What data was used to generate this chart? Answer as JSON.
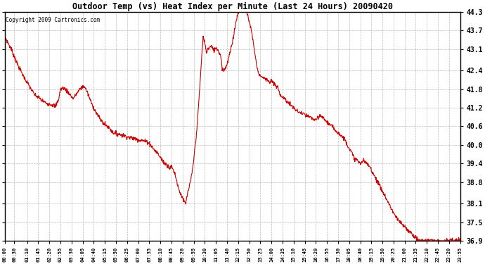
{
  "title": "Outdoor Temp (vs) Heat Index per Minute (Last 24 Hours) 20090420",
  "copyright": "Copyright 2009 Cartronics.com",
  "line_color": "#cc0000",
  "background_color": "#ffffff",
  "grid_color": "#aaaaaa",
  "ylim": [
    36.9,
    44.3
  ],
  "yticks": [
    36.9,
    37.5,
    38.1,
    38.8,
    39.4,
    40.0,
    40.6,
    41.2,
    41.8,
    42.4,
    43.1,
    43.7,
    44.3
  ],
  "x_labels": [
    "00:00",
    "00:30",
    "01:10",
    "01:45",
    "02:20",
    "02:55",
    "03:30",
    "04:05",
    "04:40",
    "05:15",
    "05:50",
    "06:25",
    "07:00",
    "07:35",
    "08:10",
    "08:45",
    "09:20",
    "09:55",
    "10:30",
    "11:05",
    "11:40",
    "12:15",
    "12:50",
    "13:25",
    "14:00",
    "14:35",
    "15:10",
    "15:45",
    "16:20",
    "16:55",
    "17:30",
    "18:05",
    "18:40",
    "19:15",
    "19:50",
    "20:25",
    "21:00",
    "21:35",
    "22:10",
    "22:45",
    "23:20",
    "23:55"
  ],
  "waypoints": [
    [
      0,
      43.5
    ],
    [
      20,
      43.1
    ],
    [
      40,
      42.6
    ],
    [
      60,
      42.2
    ],
    [
      80,
      41.85
    ],
    [
      95,
      41.6
    ],
    [
      105,
      41.55
    ],
    [
      115,
      41.45
    ],
    [
      130,
      41.35
    ],
    [
      150,
      41.3
    ],
    [
      160,
      41.25
    ],
    [
      170,
      41.5
    ],
    [
      175,
      41.8
    ],
    [
      185,
      41.85
    ],
    [
      200,
      41.7
    ],
    [
      215,
      41.5
    ],
    [
      240,
      41.85
    ],
    [
      250,
      41.9
    ],
    [
      260,
      41.7
    ],
    [
      275,
      41.3
    ],
    [
      290,
      41.0
    ],
    [
      310,
      40.7
    ],
    [
      330,
      40.55
    ],
    [
      340,
      40.4
    ],
    [
      360,
      40.35
    ],
    [
      375,
      40.3
    ],
    [
      390,
      40.25
    ],
    [
      410,
      40.2
    ],
    [
      430,
      40.15
    ],
    [
      450,
      40.1
    ],
    [
      460,
      40.0
    ],
    [
      470,
      39.85
    ],
    [
      480,
      39.75
    ],
    [
      490,
      39.6
    ],
    [
      500,
      39.45
    ],
    [
      510,
      39.35
    ],
    [
      515,
      39.3
    ],
    [
      520,
      39.25
    ],
    [
      525,
      39.3
    ],
    [
      530,
      39.2
    ],
    [
      535,
      39.1
    ],
    [
      540,
      38.9
    ],
    [
      545,
      38.7
    ],
    [
      550,
      38.5
    ],
    [
      555,
      38.4
    ],
    [
      560,
      38.3
    ],
    [
      565,
      38.15
    ],
    [
      570,
      38.1
    ],
    [
      575,
      38.4
    ],
    [
      580,
      38.6
    ],
    [
      585,
      38.8
    ],
    [
      590,
      39.1
    ],
    [
      595,
      39.5
    ],
    [
      600,
      40.0
    ],
    [
      605,
      40.5
    ],
    [
      610,
      41.2
    ],
    [
      615,
      42.0
    ],
    [
      620,
      42.8
    ],
    [
      625,
      43.5
    ],
    [
      630,
      43.3
    ],
    [
      635,
      43.0
    ],
    [
      640,
      43.1
    ],
    [
      645,
      43.15
    ],
    [
      650,
      43.2
    ],
    [
      655,
      43.1
    ],
    [
      660,
      43.05
    ],
    [
      665,
      43.15
    ],
    [
      670,
      43.1
    ],
    [
      675,
      43.0
    ],
    [
      680,
      42.9
    ],
    [
      685,
      42.5
    ],
    [
      690,
      42.4
    ],
    [
      695,
      42.5
    ],
    [
      700,
      42.6
    ],
    [
      705,
      42.8
    ],
    [
      710,
      43.0
    ],
    [
      715,
      43.2
    ],
    [
      720,
      43.5
    ],
    [
      725,
      43.8
    ],
    [
      730,
      44.1
    ],
    [
      735,
      44.25
    ],
    [
      740,
      44.35
    ],
    [
      745,
      44.4
    ],
    [
      750,
      44.45
    ],
    [
      755,
      44.4
    ],
    [
      760,
      44.35
    ],
    [
      765,
      44.2
    ],
    [
      770,
      44.0
    ],
    [
      775,
      43.8
    ],
    [
      780,
      43.5
    ],
    [
      785,
      43.2
    ],
    [
      790,
      42.8
    ],
    [
      795,
      42.5
    ],
    [
      800,
      42.3
    ],
    [
      810,
      42.2
    ],
    [
      820,
      42.15
    ],
    [
      830,
      42.1
    ],
    [
      835,
      42.0
    ],
    [
      840,
      42.1
    ],
    [
      845,
      42.0
    ],
    [
      850,
      41.95
    ],
    [
      855,
      41.9
    ],
    [
      860,
      41.85
    ],
    [
      865,
      41.7
    ],
    [
      870,
      41.6
    ],
    [
      875,
      41.55
    ],
    [
      880,
      41.5
    ],
    [
      885,
      41.45
    ],
    [
      890,
      41.4
    ],
    [
      895,
      41.35
    ],
    [
      900,
      41.3
    ],
    [
      910,
      41.2
    ],
    [
      920,
      41.1
    ],
    [
      930,
      41.05
    ],
    [
      940,
      41.0
    ],
    [
      950,
      40.95
    ],
    [
      960,
      40.9
    ],
    [
      970,
      40.85
    ],
    [
      980,
      40.8
    ],
    [
      990,
      40.9
    ],
    [
      995,
      40.95
    ],
    [
      1000,
      40.9
    ],
    [
      1005,
      40.85
    ],
    [
      1010,
      40.8
    ],
    [
      1020,
      40.7
    ],
    [
      1030,
      40.6
    ],
    [
      1040,
      40.5
    ],
    [
      1050,
      40.4
    ],
    [
      1060,
      40.3
    ],
    [
      1070,
      40.2
    ],
    [
      1075,
      40.1
    ],
    [
      1080,
      40.0
    ],
    [
      1085,
      39.9
    ],
    [
      1090,
      39.8
    ],
    [
      1095,
      39.7
    ],
    [
      1100,
      39.6
    ],
    [
      1105,
      39.55
    ],
    [
      1110,
      39.5
    ],
    [
      1115,
      39.45
    ],
    [
      1120,
      39.4
    ],
    [
      1125,
      39.45
    ],
    [
      1130,
      39.5
    ],
    [
      1135,
      39.45
    ],
    [
      1140,
      39.4
    ],
    [
      1145,
      39.35
    ],
    [
      1150,
      39.3
    ],
    [
      1155,
      39.2
    ],
    [
      1160,
      39.1
    ],
    [
      1165,
      39.0
    ],
    [
      1170,
      38.9
    ],
    [
      1175,
      38.8
    ],
    [
      1180,
      38.7
    ],
    [
      1190,
      38.5
    ],
    [
      1200,
      38.3
    ],
    [
      1210,
      38.1
    ],
    [
      1220,
      37.9
    ],
    [
      1230,
      37.7
    ],
    [
      1240,
      37.55
    ],
    [
      1250,
      37.45
    ],
    [
      1260,
      37.35
    ],
    [
      1270,
      37.25
    ],
    [
      1280,
      37.15
    ],
    [
      1290,
      37.05
    ],
    [
      1300,
      36.95
    ],
    [
      1310,
      36.9
    ],
    [
      1435,
      36.9
    ]
  ]
}
